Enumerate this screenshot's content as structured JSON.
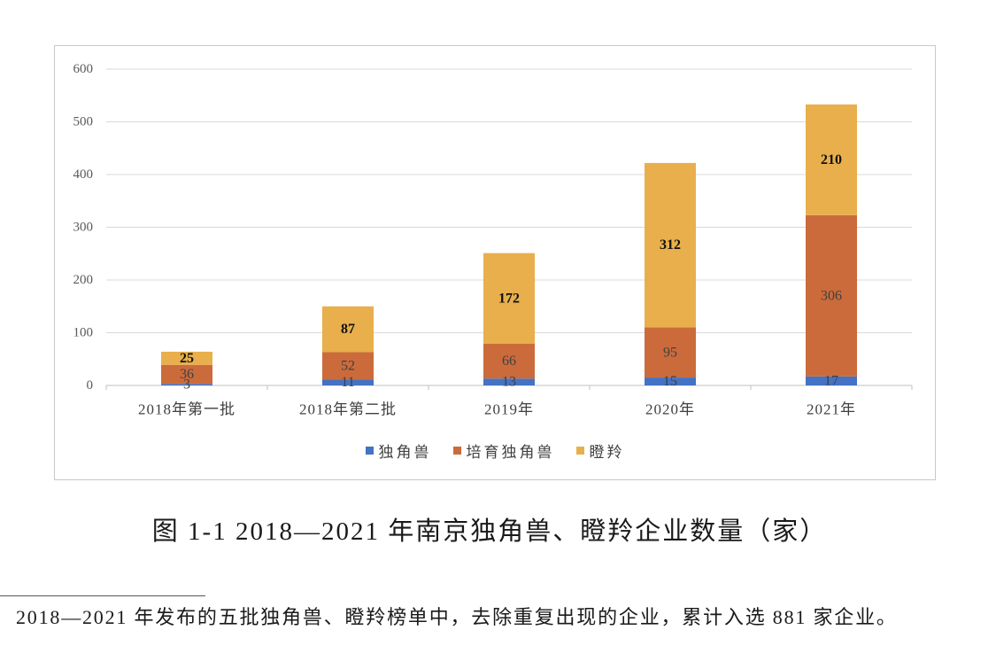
{
  "chart_data": {
    "type": "bar",
    "stacked": true,
    "categories": [
      "2018年第一批",
      "2018年第二批",
      "2019年",
      "2020年",
      "2021年"
    ],
    "series": [
      {
        "name": "独角兽",
        "values": [
          3,
          11,
          13,
          15,
          17
        ],
        "color": "#4472C4"
      },
      {
        "name": "培育独角兽",
        "values": [
          36,
          52,
          66,
          95,
          306
        ],
        "color": "#CB6B3B"
      },
      {
        "name": "瞪羚",
        "values": [
          25,
          87,
          172,
          312,
          210
        ],
        "color": "#E8AF4C"
      }
    ],
    "ylim": [
      0,
      600
    ],
    "yticks": [
      0,
      100,
      200,
      300,
      400,
      500,
      600
    ],
    "grid": true,
    "data_labels": true,
    "legend": "bottom"
  },
  "figure": {
    "caption": "图 1-1 2018—2021 年南京独角兽、瞪羚企业数量（家）"
  },
  "footnote": {
    "text": "2018—2021 年发布的五批独角兽、瞪羚榜单中，去除重复出现的企业，累计入选 881 家企业。"
  }
}
